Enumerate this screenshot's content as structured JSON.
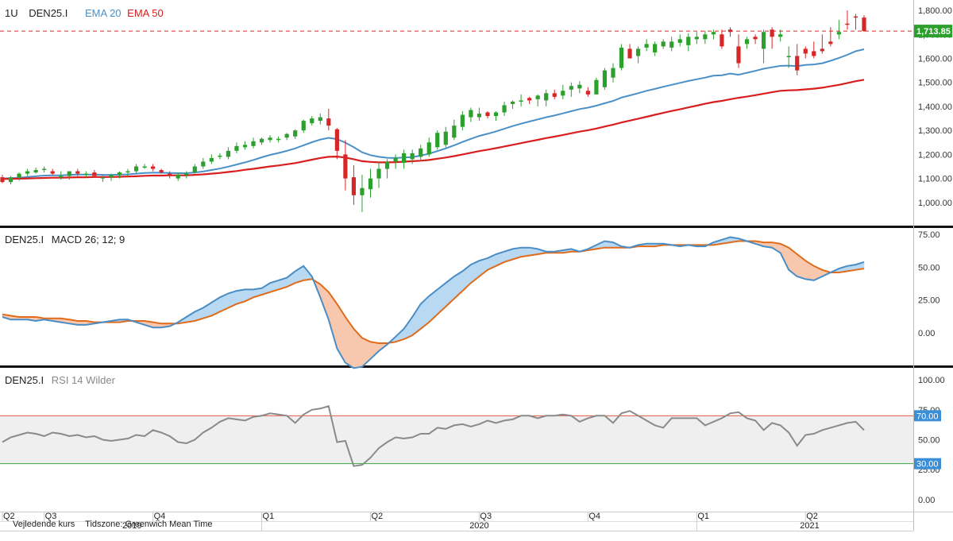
{
  "colors": {
    "up": "#2ca02c",
    "down": "#d62728",
    "ema20": "#4a90c8",
    "ema50": "#d81e1e",
    "macd": "#4a8dc4",
    "signal": "#e06b1a",
    "macd_fill_pos": "#b9d8f2",
    "macd_fill_neg": "#f7c8ad",
    "rsi": "#8a8a8a",
    "rsi_band": "#efefef",
    "rsi_upper": "#e05a4a",
    "rsi_lower": "#3aa83a",
    "price_badge": "#2ca02c",
    "level_badge": "#3a8fd6"
  },
  "header": {
    "timeframe": "1U",
    "symbol": "DEN25.I",
    "ema20_label": "EMA 20",
    "ema50_label": "EMA 50"
  },
  "macd_header": {
    "symbol": "DEN25.I",
    "label": "MACD 26; 12; 9"
  },
  "rsi_header": {
    "symbol": "DEN25.I",
    "label": "RSI 14 Wilder"
  },
  "footer": {
    "note1": "Vejledende kurs",
    "note2": "Tidszone: Greenwich Mean Time"
  },
  "chart_data": [
    {
      "type": "candlestick",
      "panel": "price",
      "last_price": 1713.85,
      "last_price_label": "1,713.85",
      "ylim": [
        930,
        1830
      ],
      "yticks": [
        "1,000.00",
        "1,100.00",
        "1,200.00",
        "1,300.00",
        "1,400.00",
        "1,500.00",
        "1,600.00",
        "1,700.00",
        "1,800.00"
      ],
      "ytick_values": [
        1000,
        1100,
        1200,
        1300,
        1400,
        1500,
        1600,
        1700,
        1800
      ],
      "x": [
        "2019-05-31",
        "2019-06-07",
        "2019-06-14",
        "2019-06-21",
        "2019-06-28",
        "2019-07-05",
        "2019-07-12",
        "2019-07-19",
        "2019-07-26",
        "2019-08-02",
        "2019-08-09",
        "2019-08-16",
        "2019-08-23",
        "2019-08-30",
        "2019-09-06",
        "2019-09-13",
        "2019-09-20",
        "2019-09-27",
        "2019-10-04",
        "2019-10-11",
        "2019-10-18",
        "2019-10-25",
        "2019-11-01",
        "2019-11-08",
        "2019-11-15",
        "2019-11-22",
        "2019-11-29",
        "2019-12-06",
        "2019-12-13",
        "2019-12-20",
        "2019-12-27",
        "2020-01-03",
        "2020-01-10",
        "2020-01-17",
        "2020-01-24",
        "2020-01-31",
        "2020-02-07",
        "2020-02-14",
        "2020-02-21",
        "2020-02-28",
        "2020-03-06",
        "2020-03-13",
        "2020-03-20",
        "2020-03-27",
        "2020-04-03",
        "2020-04-10",
        "2020-04-17",
        "2020-04-24",
        "2020-05-01",
        "2020-05-08",
        "2020-05-15",
        "2020-05-22",
        "2020-05-29",
        "2020-06-05",
        "2020-06-12",
        "2020-06-19",
        "2020-06-26",
        "2020-07-03",
        "2020-07-10",
        "2020-07-17",
        "2020-07-24",
        "2020-07-31",
        "2020-08-07",
        "2020-08-14",
        "2020-08-21",
        "2020-08-28",
        "2020-09-04",
        "2020-09-11",
        "2020-09-18",
        "2020-09-25",
        "2020-10-02",
        "2020-10-09",
        "2020-10-16",
        "2020-10-23",
        "2020-10-30",
        "2020-11-06",
        "2020-11-13",
        "2020-11-20",
        "2020-11-27",
        "2020-12-04",
        "2020-12-11",
        "2020-12-18",
        "2020-12-25",
        "2021-01-01",
        "2021-01-08",
        "2021-01-15",
        "2021-01-22",
        "2021-01-29",
        "2021-02-05",
        "2021-02-12",
        "2021-02-19",
        "2021-02-26",
        "2021-03-05",
        "2021-03-12",
        "2021-03-19",
        "2021-03-26",
        "2021-04-02",
        "2021-04-09",
        "2021-04-16",
        "2021-04-23",
        "2021-04-30",
        "2021-05-07",
        "2021-05-14",
        "2021-05-21"
      ],
      "open": [
        1105,
        1085,
        1105,
        1120,
        1125,
        1135,
        1130,
        1110,
        1110,
        1130,
        1115,
        1125,
        1100,
        1105,
        1115,
        1125,
        1130,
        1150,
        1150,
        1135,
        1120,
        1100,
        1115,
        1125,
        1150,
        1170,
        1190,
        1190,
        1215,
        1230,
        1235,
        1250,
        1260,
        1260,
        1270,
        1275,
        1300,
        1330,
        1340,
        1350,
        1305,
        1200,
        1105,
        1030,
        1055,
        1100,
        1140,
        1170,
        1165,
        1180,
        1190,
        1200,
        1230,
        1240,
        1270,
        1315,
        1355,
        1355,
        1375,
        1360,
        1375,
        1410,
        1420,
        1435,
        1430,
        1425,
        1455,
        1445,
        1470,
        1475,
        1465,
        1450,
        1480,
        1520,
        1560,
        1640,
        1610,
        1645,
        1625,
        1650,
        1645,
        1665,
        1655,
        1680,
        1680,
        1700,
        1700,
        1720,
        1650,
        1660,
        1690,
        1640,
        1720,
        1690,
        1610,
        1610,
        1640,
        1630,
        1640,
        1670,
        1700,
        1745,
        1775,
        1770
      ],
      "high": [
        1115,
        1110,
        1125,
        1140,
        1145,
        1150,
        1140,
        1130,
        1125,
        1140,
        1130,
        1135,
        1115,
        1120,
        1130,
        1140,
        1160,
        1160,
        1160,
        1140,
        1130,
        1125,
        1130,
        1160,
        1185,
        1200,
        1205,
        1230,
        1250,
        1255,
        1270,
        1270,
        1280,
        1275,
        1290,
        1305,
        1345,
        1360,
        1370,
        1390,
        1310,
        1260,
        1155,
        1115,
        1140,
        1170,
        1180,
        1200,
        1220,
        1220,
        1240,
        1270,
        1300,
        1315,
        1345,
        1380,
        1395,
        1395,
        1380,
        1380,
        1420,
        1425,
        1450,
        1440,
        1450,
        1470,
        1470,
        1490,
        1500,
        1505,
        1480,
        1520,
        1560,
        1580,
        1660,
        1660,
        1650,
        1680,
        1670,
        1680,
        1690,
        1700,
        1705,
        1710,
        1715,
        1720,
        1720,
        1730,
        1700,
        1690,
        1700,
        1720,
        1730,
        1720,
        1650,
        1660,
        1650,
        1670,
        1700,
        1730,
        1760,
        1800,
        1785,
        1780
      ],
      "low": [
        1080,
        1075,
        1090,
        1110,
        1120,
        1125,
        1115,
        1095,
        1095,
        1110,
        1105,
        1110,
        1085,
        1090,
        1100,
        1110,
        1120,
        1140,
        1130,
        1120,
        1100,
        1090,
        1100,
        1120,
        1140,
        1160,
        1180,
        1180,
        1205,
        1220,
        1225,
        1240,
        1250,
        1250,
        1260,
        1265,
        1290,
        1320,
        1325,
        1300,
        1180,
        1050,
        990,
        960,
        1020,
        1060,
        1100,
        1140,
        1140,
        1160,
        1170,
        1190,
        1220,
        1230,
        1260,
        1300,
        1335,
        1340,
        1350,
        1340,
        1360,
        1390,
        1400,
        1410,
        1400,
        1400,
        1430,
        1430,
        1440,
        1455,
        1440,
        1450,
        1470,
        1500,
        1550,
        1600,
        1580,
        1630,
        1610,
        1640,
        1630,
        1650,
        1630,
        1660,
        1660,
        1680,
        1640,
        1690,
        1560,
        1640,
        1660,
        1580,
        1640,
        1670,
        1560,
        1530,
        1600,
        1600,
        1620,
        1650,
        1680,
        1720,
        1720,
        1710
      ],
      "close": [
        1085,
        1105,
        1120,
        1130,
        1135,
        1140,
        1120,
        1110,
        1130,
        1120,
        1120,
        1110,
        1105,
        1115,
        1125,
        1130,
        1150,
        1150,
        1140,
        1125,
        1110,
        1115,
        1120,
        1150,
        1170,
        1185,
        1195,
        1215,
        1235,
        1240,
        1255,
        1265,
        1270,
        1265,
        1285,
        1300,
        1340,
        1350,
        1355,
        1320,
        1215,
        1100,
        1030,
        1060,
        1100,
        1140,
        1170,
        1185,
        1205,
        1205,
        1225,
        1250,
        1290,
        1295,
        1320,
        1365,
        1385,
        1370,
        1360,
        1375,
        1405,
        1420,
        1425,
        1425,
        1445,
        1455,
        1440,
        1465,
        1485,
        1490,
        1450,
        1510,
        1550,
        1560,
        1645,
        1600,
        1640,
        1660,
        1660,
        1670,
        1670,
        1680,
        1690,
        1690,
        1700,
        1710,
        1650,
        1710,
        1580,
        1680,
        1680,
        1710,
        1690,
        1700,
        1610,
        1550,
        1620,
        1610,
        1630,
        1660,
        1710,
        1740,
        1770,
        1713.85
      ]
    },
    {
      "type": "line",
      "panel": "price",
      "series": [
        {
          "name": "EMA 20",
          "values": [
            1100,
            1101,
            1103,
            1106,
            1109,
            1112,
            1113,
            1113,
            1115,
            1116,
            1116,
            1116,
            1115,
            1115,
            1116,
            1117,
            1120,
            1123,
            1124,
            1124,
            1123,
            1122,
            1122,
            1125,
            1129,
            1135,
            1141,
            1149,
            1158,
            1167,
            1177,
            1188,
            1198,
            1206,
            1215,
            1225,
            1238,
            1251,
            1262,
            1269,
            1264,
            1249,
            1230,
            1209,
            1197,
            1190,
            1186,
            1185,
            1187,
            1189,
            1195,
            1203,
            1214,
            1225,
            1238,
            1252,
            1265,
            1277,
            1286,
            1296,
            1307,
            1318,
            1328,
            1337,
            1346,
            1355,
            1362,
            1371,
            1380,
            1389,
            1395,
            1403,
            1413,
            1423,
            1437,
            1446,
            1455,
            1465,
            1473,
            1482,
            1490,
            1498,
            1506,
            1513,
            1520,
            1528,
            1530,
            1537,
            1532,
            1540,
            1548,
            1557,
            1563,
            1569,
            1570,
            1568,
            1573,
            1575,
            1580,
            1590,
            1602,
            1615,
            1630,
            1638
          ]
        },
        {
          "name": "EMA 50",
          "values": [
            1098,
            1098,
            1099,
            1100,
            1101,
            1102,
            1103,
            1103,
            1104,
            1105,
            1105,
            1106,
            1106,
            1106,
            1107,
            1108,
            1109,
            1111,
            1112,
            1112,
            1113,
            1113,
            1113,
            1115,
            1117,
            1120,
            1123,
            1127,
            1131,
            1136,
            1140,
            1145,
            1150,
            1154,
            1159,
            1164,
            1171,
            1178,
            1185,
            1190,
            1191,
            1187,
            1180,
            1172,
            1169,
            1167,
            1167,
            1168,
            1170,
            1172,
            1174,
            1177,
            1182,
            1187,
            1193,
            1200,
            1207,
            1214,
            1220,
            1226,
            1233,
            1240,
            1247,
            1254,
            1261,
            1268,
            1274,
            1281,
            1288,
            1295,
            1301,
            1308,
            1316,
            1324,
            1333,
            1341,
            1349,
            1357,
            1365,
            1373,
            1381,
            1388,
            1396,
            1403,
            1411,
            1418,
            1423,
            1430,
            1436,
            1441,
            1447,
            1453,
            1459,
            1465,
            1467,
            1468,
            1471,
            1474,
            1478,
            1484,
            1490,
            1497,
            1505,
            1511
          ]
        }
      ]
    },
    {
      "type": "line",
      "panel": "macd",
      "ylim": [
        -25,
        80
      ],
      "yticks": [
        "0.00",
        "25.00",
        "50.00",
        "75.00"
      ],
      "ytick_values": [
        0,
        25,
        50,
        75
      ],
      "series": [
        {
          "name": "MACD",
          "values": [
            12,
            10,
            10,
            10,
            9,
            10,
            9,
            8,
            7,
            6,
            6,
            7,
            8,
            9,
            10,
            10,
            8,
            6,
            4,
            4,
            5,
            8,
            12,
            16,
            19,
            23,
            27,
            30,
            32,
            33,
            33,
            34,
            38,
            40,
            42,
            47,
            51,
            43,
            27,
            10,
            -12,
            -23,
            -27,
            -26,
            -20,
            -14,
            -9,
            -3,
            3,
            12,
            22,
            28,
            33,
            38,
            43,
            47,
            52,
            55,
            57,
            60,
            62,
            64,
            65,
            65,
            64,
            62,
            62,
            63,
            64,
            62,
            64,
            67,
            70,
            69,
            66,
            65,
            67,
            68,
            68,
            68,
            67,
            66,
            67,
            66,
            66,
            69,
            71,
            73,
            72,
            70,
            68,
            66,
            65,
            61,
            48,
            43,
            41,
            40,
            43,
            46,
            49,
            51,
            52,
            54
          ]
        },
        {
          "name": "Signal",
          "values": [
            14,
            13,
            12,
            12,
            12,
            11,
            11,
            11,
            10,
            9,
            9,
            8,
            8,
            8,
            8,
            9,
            9,
            9,
            8,
            7,
            7,
            7,
            8,
            9,
            11,
            13,
            16,
            19,
            22,
            24,
            27,
            29,
            31,
            33,
            35,
            38,
            40,
            41,
            37,
            31,
            22,
            12,
            3,
            -4,
            -7,
            -8,
            -8,
            -7,
            -5,
            -2,
            3,
            8,
            14,
            20,
            26,
            32,
            38,
            43,
            48,
            51,
            54,
            56,
            58,
            59,
            60,
            61,
            61,
            61,
            62,
            62,
            63,
            64,
            65,
            65,
            65,
            65,
            66,
            66,
            66,
            67,
            67,
            67,
            67,
            67,
            67,
            67,
            68,
            69,
            70,
            70,
            70,
            69,
            69,
            68,
            65,
            60,
            55,
            51,
            48,
            46,
            46,
            47,
            48,
            49
          ]
        }
      ]
    },
    {
      "type": "line",
      "panel": "rsi",
      "ylim": [
        -10,
        110
      ],
      "yticks": [
        "0.00",
        "25.00",
        "50.00",
        "75.00",
        "100.00"
      ],
      "ytick_values": [
        0,
        25,
        50,
        75,
        100
      ],
      "levels": [
        70,
        30
      ],
      "level_labels": [
        "70.00",
        "30.00"
      ],
      "series": [
        {
          "name": "RSI 14",
          "values": [
            48,
            52,
            54,
            56,
            55,
            53,
            56,
            55,
            53,
            54,
            52,
            53,
            50,
            49,
            50,
            51,
            54,
            53,
            58,
            56,
            53,
            48,
            47,
            50,
            56,
            60,
            65,
            68,
            67,
            66,
            69,
            70,
            72,
            71,
            70,
            64,
            71,
            75,
            76,
            78,
            48,
            49,
            28,
            29,
            35,
            43,
            48,
            52,
            51,
            52,
            55,
            55,
            60,
            59,
            62,
            63,
            61,
            63,
            66,
            64,
            66,
            67,
            70,
            70,
            68,
            70,
            70,
            71,
            70,
            65,
            68,
            70,
            70,
            64,
            72,
            74,
            70,
            66,
            62,
            60,
            68,
            68,
            68,
            68,
            62,
            65,
            68,
            72,
            73,
            68,
            66,
            58,
            64,
            62,
            56,
            45,
            54,
            55,
            58,
            60,
            62,
            64,
            65,
            58
          ]
        }
      ]
    }
  ],
  "x_axis": {
    "quarters": [
      "Q2",
      "Q3",
      "Q4",
      "Q1",
      "Q2",
      "Q3",
      "Q4",
      "Q1",
      "Q2"
    ],
    "quarter_positions": [
      0,
      5,
      18,
      31,
      44,
      57,
      70,
      83,
      96
    ],
    "years": [
      "2019",
      "2020",
      "2021"
    ],
    "year_positions": [
      15.5,
      57,
      96.5
    ],
    "year_boundaries": [
      31,
      83
    ]
  }
}
